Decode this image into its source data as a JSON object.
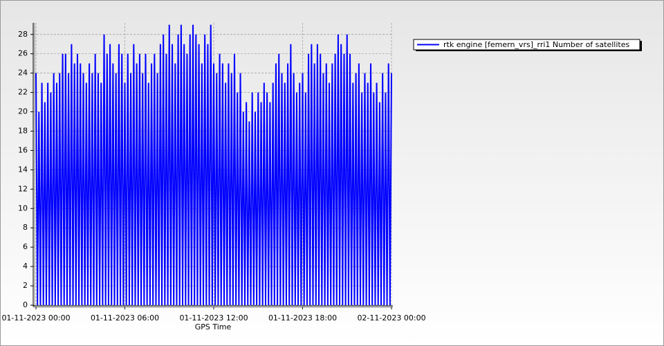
{
  "chart_data": {
    "type": "line",
    "x_label": "GPS Time",
    "x": [
      0,
      0.1,
      0.2,
      0.3,
      0.4,
      0.5,
      0.6,
      0.7,
      0.8,
      0.9,
      1,
      1.1,
      1.2,
      1.3,
      1.4,
      1.5,
      1.6,
      1.7,
      1.8,
      1.9,
      2,
      2.1,
      2.2,
      2.3,
      2.4,
      2.5,
      2.6,
      2.7,
      2.8,
      2.9,
      3,
      3.1,
      3.2,
      3.3,
      3.4,
      3.5,
      3.6,
      3.7,
      3.8,
      3.9,
      4,
      4.1,
      4.2,
      4.3,
      4.4,
      4.5,
      4.6,
      4.7,
      4.8,
      4.9,
      5,
      5.1,
      5.2,
      5.3,
      5.4,
      5.5,
      5.6,
      5.7,
      5.8,
      5.9,
      6,
      6.1,
      6.2,
      6.3,
      6.4,
      6.5,
      6.6,
      6.7,
      6.8,
      6.9,
      7,
      7.1,
      7.2,
      7.3,
      7.4,
      7.5,
      7.6,
      7.7,
      7.8,
      7.9,
      8,
      8.1,
      8.2,
      8.3,
      8.4,
      8.5,
      8.6,
      8.7,
      8.8,
      8.9,
      9,
      9.1,
      9.2,
      9.3,
      9.4,
      9.5,
      9.6,
      9.7,
      9.8,
      9.9,
      10,
      10.1,
      10.2,
      10.3,
      10.4,
      10.5,
      10.6,
      10.7,
      10.8,
      10.9,
      11,
      11.1,
      11.2,
      11.3,
      11.4,
      11.5,
      11.6,
      11.7,
      11.8,
      11.9,
      12,
      12.1,
      12.2,
      12.3,
      12.4,
      12.5,
      12.6,
      12.7,
      12.8,
      12.9,
      13,
      13.1,
      13.2,
      13.3,
      13.4,
      13.5,
      13.6,
      13.7,
      13.8,
      13.9,
      14,
      14.1,
      14.2,
      14.3,
      14.4,
      14.5,
      14.6,
      14.7,
      14.8,
      14.9,
      15,
      15.1,
      15.2,
      15.3,
      15.4,
      15.5,
      15.6,
      15.7,
      15.8,
      15.9,
      16,
      16.1,
      16.2,
      16.3,
      16.4,
      16.5,
      16.6,
      16.7,
      16.8,
      16.9,
      17,
      17.1,
      17.2,
      17.3,
      17.4,
      17.5,
      17.6,
      17.7,
      17.8,
      17.9,
      18,
      18.1,
      18.2,
      18.3,
      18.4,
      18.5,
      18.6,
      18.7,
      18.8,
      18.9,
      19,
      19.1,
      19.2,
      19.3,
      19.4,
      19.5,
      19.6,
      19.7,
      19.8,
      19.9,
      20,
      20.1,
      20.2,
      20.3,
      20.4,
      20.5,
      20.6,
      20.7,
      20.8,
      20.9,
      21,
      21.1,
      21.2,
      21.3,
      21.4,
      21.5,
      21.6,
      21.7,
      21.8,
      21.9,
      22,
      22.1,
      22.2,
      22.3,
      22.4,
      22.5,
      22.6,
      22.7,
      22.8,
      22.9,
      23,
      23.1,
      23.2,
      23.3,
      23.4,
      23.5,
      23.6,
      23.7,
      23.8,
      23.9,
      24
    ],
    "series": [
      {
        "name": "rtk engine [femern_vrs]_rri1 Number of satellites",
        "color": "#0000ff",
        "values": [
          24,
          0,
          20,
          0,
          23,
          0,
          21,
          0,
          23,
          0,
          22,
          0,
          24,
          0,
          23,
          0,
          24,
          0,
          26,
          0,
          26,
          0,
          24,
          0,
          27,
          0,
          25,
          0,
          26,
          0,
          25,
          0,
          24,
          0,
          23,
          0,
          25,
          0,
          24,
          0,
          26,
          0,
          24,
          0,
          23,
          0,
          28,
          0,
          26,
          0,
          27,
          0,
          25,
          0,
          24,
          0,
          27,
          0,
          26,
          0,
          23,
          0,
          26,
          0,
          24,
          0,
          27,
          0,
          25,
          0,
          26,
          0,
          24,
          0,
          26,
          0,
          23,
          0,
          25,
          0,
          26,
          0,
          24,
          0,
          27,
          0,
          28,
          0,
          26,
          0,
          29,
          0,
          27,
          0,
          25,
          0,
          28,
          0,
          29,
          0,
          27,
          0,
          26,
          0,
          28,
          0,
          29,
          0,
          28,
          0,
          27,
          0,
          25,
          0,
          28,
          0,
          27,
          0,
          29,
          0,
          25,
          0,
          24,
          0,
          26,
          0,
          25,
          0,
          23,
          0,
          25,
          0,
          24,
          0,
          26,
          0,
          22,
          0,
          24,
          0,
          20,
          0,
          21,
          0,
          19,
          0,
          22,
          0,
          20,
          0,
          22,
          0,
          21,
          0,
          23,
          0,
          22,
          0,
          21,
          0,
          23,
          0,
          25,
          0,
          26,
          0,
          24,
          0,
          23,
          0,
          25,
          0,
          27,
          0,
          24,
          0,
          22,
          0,
          23,
          0,
          24,
          0,
          22,
          0,
          26,
          0,
          27,
          0,
          25,
          0,
          27,
          0,
          26,
          0,
          24,
          0,
          25,
          0,
          23,
          0,
          25,
          0,
          26,
          0,
          28,
          0,
          27,
          0,
          26,
          0,
          28,
          0,
          26,
          0,
          23,
          0,
          24,
          0,
          25,
          0,
          22,
          0,
          24,
          0,
          23,
          0,
          25,
          0,
          22,
          0,
          23,
          0,
          21,
          0,
          24,
          0,
          22,
          0,
          25,
          0,
          24
        ]
      }
    ],
    "xlim": [
      0,
      24
    ],
    "xticks": [
      {
        "value": 0,
        "label": "01-11-2023 00:00"
      },
      {
        "value": 6,
        "label": "01-11-2023 06:00"
      },
      {
        "value": 12,
        "label": "01-11-2023 12:00"
      },
      {
        "value": 18,
        "label": "01-11-2023 18:00"
      },
      {
        "value": 24,
        "label": "02-11-2023 00:00"
      }
    ],
    "ylim": [
      0,
      29.2
    ],
    "yticks": [
      0,
      2,
      4,
      6,
      8,
      10,
      12,
      14,
      16,
      18,
      20,
      22,
      24,
      26,
      28
    ],
    "grid": true
  }
}
